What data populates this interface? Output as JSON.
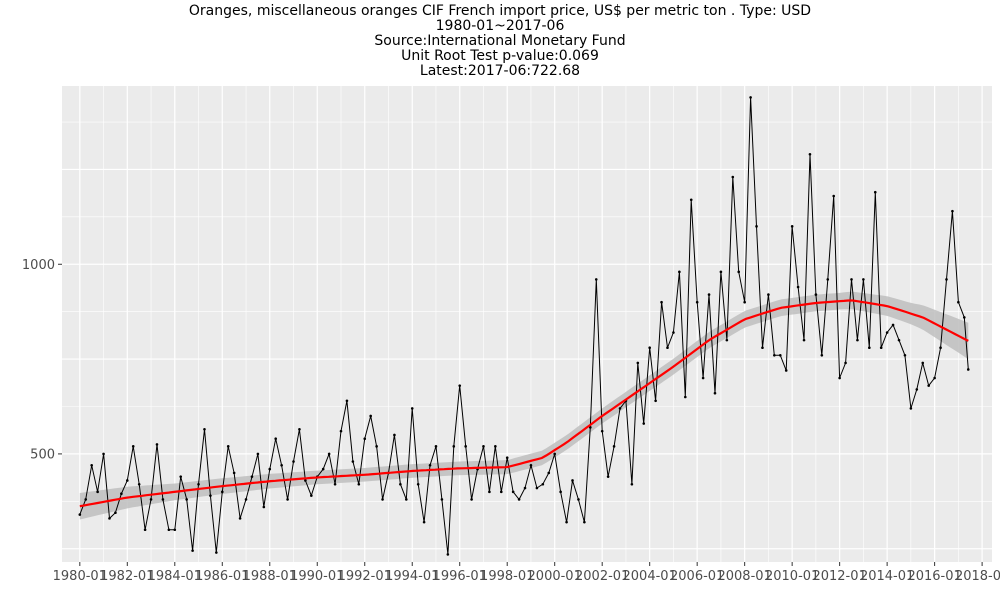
{
  "chart_data": {
    "type": "line",
    "title_lines": [
      "Oranges, miscellaneous oranges CIF French import price, US$ per metric ton . Type: USD",
      "1980-01~2017-06",
      "Source:International Monetary Fund",
      "Unit Root Test p-value:0.069",
      "Latest:2017-06:722.68"
    ],
    "xlabel": "",
    "ylabel": "",
    "x_tick_labels": [
      "1980-01",
      "1982-01",
      "1984-01",
      "1986-01",
      "1988-01",
      "1990-01",
      "1992-01",
      "1994-01",
      "1996-01",
      "1998-01",
      "2000-01",
      "2002-01",
      "2004-01",
      "2006-01",
      "2008-01",
      "2010-01",
      "2012-01",
      "2014-01",
      "2016-01",
      "2018-01"
    ],
    "y_tick_labels": [
      "500",
      "1000"
    ],
    "y_ticks": [
      500,
      1000
    ],
    "xlim": [
      "1979-04",
      "2018-06"
    ],
    "ylim": [
      215,
      1470
    ],
    "grid": true,
    "colors": {
      "panel_background": "#ebebeb",
      "grid_major": "#ffffff",
      "series_line": "#000000",
      "trend_line": "#ff0000",
      "confidence_band": "#bebebe"
    },
    "series": [
      {
        "role": "observed",
        "sampled_points": [
          [
            "1980-01",
            340
          ],
          [
            "1980-04",
            380
          ],
          [
            "1980-07",
            470
          ],
          [
            "1980-10",
            400
          ],
          [
            "1981-01",
            500
          ],
          [
            "1981-04",
            330
          ],
          [
            "1981-07",
            345
          ],
          [
            "1981-10",
            395
          ],
          [
            "1982-01",
            430
          ],
          [
            "1982-04",
            520
          ],
          [
            "1982-07",
            420
          ],
          [
            "1982-10",
            300
          ],
          [
            "1983-01",
            380
          ],
          [
            "1983-04",
            525
          ],
          [
            "1983-07",
            380
          ],
          [
            "1983-10",
            300
          ],
          [
            "1984-01",
            300
          ],
          [
            "1984-04",
            440
          ],
          [
            "1984-07",
            380
          ],
          [
            "1984-10",
            245
          ],
          [
            "1985-01",
            420
          ],
          [
            "1985-04",
            565
          ],
          [
            "1985-07",
            390
          ],
          [
            "1985-10",
            240
          ],
          [
            "1986-01",
            400
          ],
          [
            "1986-04",
            520
          ],
          [
            "1986-07",
            450
          ],
          [
            "1986-10",
            330
          ],
          [
            "1987-01",
            380
          ],
          [
            "1987-04",
            440
          ],
          [
            "1987-07",
            500
          ],
          [
            "1987-10",
            360
          ],
          [
            "1988-01",
            460
          ],
          [
            "1988-04",
            540
          ],
          [
            "1988-07",
            470
          ],
          [
            "1988-10",
            380
          ],
          [
            "1989-01",
            480
          ],
          [
            "1989-04",
            565
          ],
          [
            "1989-07",
            430
          ],
          [
            "1989-10",
            390
          ],
          [
            "1990-01",
            440
          ],
          [
            "1990-04",
            460
          ],
          [
            "1990-07",
            500
          ],
          [
            "1990-10",
            420
          ],
          [
            "1991-01",
            560
          ],
          [
            "1991-04",
            640
          ],
          [
            "1991-07",
            480
          ],
          [
            "1991-10",
            420
          ],
          [
            "1992-01",
            540
          ],
          [
            "1992-04",
            600
          ],
          [
            "1992-07",
            520
          ],
          [
            "1992-10",
            380
          ],
          [
            "1993-01",
            450
          ],
          [
            "1993-04",
            550
          ],
          [
            "1993-07",
            420
          ],
          [
            "1993-10",
            380
          ],
          [
            "1994-01",
            620
          ],
          [
            "1994-04",
            420
          ],
          [
            "1994-07",
            320
          ],
          [
            "1994-10",
            470
          ],
          [
            "1995-01",
            520
          ],
          [
            "1995-04",
            380
          ],
          [
            "1995-07",
            235
          ],
          [
            "1995-10",
            520
          ],
          [
            "1996-01",
            680
          ],
          [
            "1996-04",
            520
          ],
          [
            "1996-07",
            380
          ],
          [
            "1996-10",
            460
          ],
          [
            "1997-01",
            520
          ],
          [
            "1997-04",
            400
          ],
          [
            "1997-07",
            520
          ],
          [
            "1997-10",
            400
          ],
          [
            "1998-01",
            490
          ],
          [
            "1998-04",
            400
          ],
          [
            "1998-07",
            380
          ],
          [
            "1998-10",
            410
          ],
          [
            "1999-01",
            470
          ],
          [
            "1999-04",
            410
          ],
          [
            "1999-07",
            420
          ],
          [
            "1999-10",
            450
          ],
          [
            "2000-01",
            500
          ],
          [
            "2000-04",
            400
          ],
          [
            "2000-07",
            320
          ],
          [
            "2000-10",
            430
          ],
          [
            "2001-01",
            380
          ],
          [
            "2001-04",
            320
          ],
          [
            "2001-07",
            570
          ],
          [
            "2001-10",
            960
          ],
          [
            "2002-01",
            560
          ],
          [
            "2002-04",
            440
          ],
          [
            "2002-07",
            520
          ],
          [
            "2002-10",
            620
          ],
          [
            "2003-01",
            640
          ],
          [
            "2003-04",
            420
          ],
          [
            "2003-07",
            740
          ],
          [
            "2003-10",
            580
          ],
          [
            "2004-01",
            780
          ],
          [
            "2004-04",
            640
          ],
          [
            "2004-07",
            900
          ],
          [
            "2004-10",
            780
          ],
          [
            "2005-01",
            820
          ],
          [
            "2005-04",
            980
          ],
          [
            "2005-07",
            650
          ],
          [
            "2005-10",
            1170
          ],
          [
            "2006-01",
            900
          ],
          [
            "2006-04",
            700
          ],
          [
            "2006-07",
            920
          ],
          [
            "2006-10",
            660
          ],
          [
            "2007-01",
            980
          ],
          [
            "2007-04",
            800
          ],
          [
            "2007-07",
            1230
          ],
          [
            "2007-10",
            980
          ],
          [
            "2008-01",
            900
          ],
          [
            "2008-04",
            1440
          ],
          [
            "2008-07",
            1100
          ],
          [
            "2008-10",
            780
          ],
          [
            "2009-01",
            920
          ],
          [
            "2009-04",
            760
          ],
          [
            "2009-07",
            760
          ],
          [
            "2009-10",
            720
          ],
          [
            "2010-01",
            1100
          ],
          [
            "2010-04",
            940
          ],
          [
            "2010-07",
            800
          ],
          [
            "2010-10",
            1290
          ],
          [
            "2011-01",
            920
          ],
          [
            "2011-04",
            760
          ],
          [
            "2011-07",
            960
          ],
          [
            "2011-10",
            1180
          ],
          [
            "2012-01",
            700
          ],
          [
            "2012-04",
            740
          ],
          [
            "2012-07",
            960
          ],
          [
            "2012-10",
            800
          ],
          [
            "2013-01",
            960
          ],
          [
            "2013-04",
            780
          ],
          [
            "2013-07",
            1190
          ],
          [
            "2013-10",
            780
          ],
          [
            "2014-01",
            820
          ],
          [
            "2014-04",
            840
          ],
          [
            "2014-07",
            800
          ],
          [
            "2014-10",
            760
          ],
          [
            "2015-01",
            620
          ],
          [
            "2015-04",
            670
          ],
          [
            "2015-07",
            740
          ],
          [
            "2015-10",
            680
          ],
          [
            "2016-01",
            700
          ],
          [
            "2016-04",
            780
          ],
          [
            "2016-07",
            960
          ],
          [
            "2016-10",
            1140
          ],
          [
            "2017-01",
            900
          ],
          [
            "2017-04",
            860
          ],
          [
            "2017-06",
            722.68
          ]
        ]
      },
      {
        "role": "smoothed_trend",
        "sampled_points": [
          [
            "1980-01",
            362
          ],
          [
            "1982-01",
            385
          ],
          [
            "1984-01",
            400
          ],
          [
            "1986-01",
            415
          ],
          [
            "1988-01",
            428
          ],
          [
            "1990-01",
            438
          ],
          [
            "1992-01",
            445
          ],
          [
            "1994-01",
            455
          ],
          [
            "1996-01",
            462
          ],
          [
            "1998-01",
            465
          ],
          [
            "1999-07",
            490
          ],
          [
            "2000-07",
            530
          ],
          [
            "2002-01",
            600
          ],
          [
            "2003-07",
            665
          ],
          [
            "2005-01",
            730
          ],
          [
            "2006-07",
            800
          ],
          [
            "2008-01",
            855
          ],
          [
            "2009-07",
            885
          ],
          [
            "2011-01",
            898
          ],
          [
            "2012-07",
            905
          ],
          [
            "2014-01",
            890
          ],
          [
            "2015-07",
            860
          ],
          [
            "2017-06",
            798
          ]
        ]
      }
    ],
    "confidence_band_halfwidth": [
      [
        "1980-01",
        35
      ],
      [
        "1984-01",
        22
      ],
      [
        "1990-01",
        18
      ],
      [
        "1996-01",
        18
      ],
      [
        "2002-01",
        20
      ],
      [
        "2008-01",
        22
      ],
      [
        "2012-01",
        22
      ],
      [
        "2015-01",
        28
      ],
      [
        "2017-06",
        48
      ]
    ]
  }
}
